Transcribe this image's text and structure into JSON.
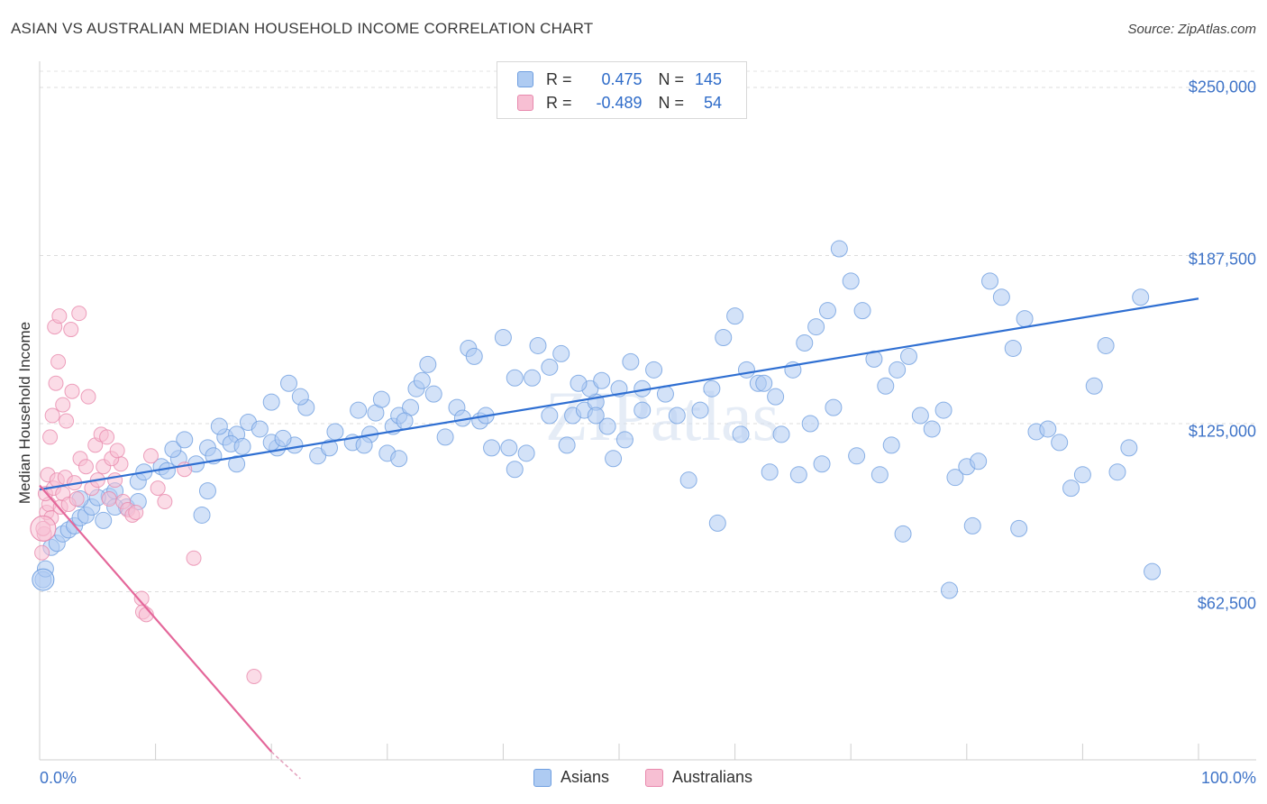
{
  "chart_data": {
    "type": "scatter",
    "title": "ASIAN VS AUSTRALIAN MEDIAN HOUSEHOLD INCOME CORRELATION CHART",
    "source": "Source: ZipAtlas.com",
    "watermark": "ZIPatlas",
    "xlabel": "",
    "ylabel": "Median Household Income",
    "xlim": [
      0,
      100
    ],
    "ylim": [
      0,
      250000
    ],
    "x_tick_labels": [
      "0.0%",
      "100.0%"
    ],
    "y_tick_labels": [
      {
        "value": 250000,
        "label": "$250,000"
      },
      {
        "value": 187500,
        "label": "$187,500"
      },
      {
        "value": 125000,
        "label": "$125,000"
      },
      {
        "value": 62500,
        "label": "$62,500"
      }
    ],
    "legend": {
      "rows": [
        {
          "r_label": "R =",
          "r_value": "0.475",
          "n_label": "N =",
          "n_value": "145"
        },
        {
          "r_label": "R =",
          "r_value": "-0.489",
          "n_label": "N =",
          "n_value": "54"
        }
      ]
    },
    "series": [
      {
        "name": "Asians",
        "color": "#6f9fe0",
        "fill": "#aecbf2",
        "trend": {
          "x": [
            0,
            100
          ],
          "y": [
            100500,
            171500
          ]
        },
        "points": [
          [
            0.3,
            67000
          ],
          [
            0.5,
            71000
          ],
          [
            1.0,
            79000
          ],
          [
            1.5,
            80500
          ],
          [
            2.0,
            84000
          ],
          [
            2.5,
            85500
          ],
          [
            3.0,
            87000
          ],
          [
            3.5,
            90000
          ],
          [
            4.0,
            91000
          ],
          [
            4.5,
            94000
          ],
          [
            6.0,
            98000
          ],
          [
            7.5,
            94000
          ],
          [
            8.5,
            96000
          ],
          [
            3.5,
            97000
          ],
          [
            5.5,
            89000
          ],
          [
            6.5,
            94000
          ],
          [
            5.0,
            97500
          ],
          [
            6.5,
            100000
          ],
          [
            8.5,
            103500
          ],
          [
            9.0,
            107000
          ],
          [
            10.5,
            109000
          ],
          [
            11.0,
            107500
          ],
          [
            12.0,
            112000
          ],
          [
            13.5,
            110000
          ],
          [
            11.5,
            115500
          ],
          [
            12.5,
            119000
          ],
          [
            14.5,
            116000
          ],
          [
            15.0,
            113000
          ],
          [
            16.0,
            120000
          ],
          [
            15.5,
            124000
          ],
          [
            17.0,
            121000
          ],
          [
            14.0,
            91000
          ],
          [
            14.5,
            100000
          ],
          [
            16.5,
            117500
          ],
          [
            17.5,
            116500
          ],
          [
            18.0,
            125500
          ],
          [
            17.0,
            110000
          ],
          [
            19.0,
            123000
          ],
          [
            20.5,
            116000
          ],
          [
            20.0,
            118000
          ],
          [
            22.0,
            117000
          ],
          [
            20.0,
            133000
          ],
          [
            23.0,
            131000
          ],
          [
            21.5,
            140000
          ],
          [
            22.5,
            135000
          ],
          [
            21.0,
            119500
          ],
          [
            24.0,
            113000
          ],
          [
            25.0,
            116000
          ],
          [
            25.5,
            122000
          ],
          [
            27.0,
            118000
          ],
          [
            28.5,
            121000
          ],
          [
            27.5,
            130000
          ],
          [
            29.0,
            129000
          ],
          [
            28.0,
            117000
          ],
          [
            30.0,
            114000
          ],
          [
            30.5,
            124000
          ],
          [
            31.0,
            128000
          ],
          [
            32.0,
            131000
          ],
          [
            32.5,
            138000
          ],
          [
            33.0,
            141000
          ],
          [
            31.5,
            126000
          ],
          [
            29.5,
            134000
          ],
          [
            31.0,
            112000
          ],
          [
            33.5,
            147000
          ],
          [
            34.0,
            136000
          ],
          [
            35.0,
            120000
          ],
          [
            36.0,
            131000
          ],
          [
            36.5,
            127000
          ],
          [
            37.0,
            153000
          ],
          [
            37.5,
            150000
          ],
          [
            38.0,
            126000
          ],
          [
            38.5,
            128000
          ],
          [
            40.0,
            157000
          ],
          [
            40.5,
            116000
          ],
          [
            41.0,
            108000
          ],
          [
            39.0,
            116000
          ],
          [
            42.0,
            114000
          ],
          [
            41.0,
            142000
          ],
          [
            42.5,
            142000
          ],
          [
            43.0,
            154000
          ],
          [
            44.0,
            146000
          ],
          [
            45.0,
            151000
          ],
          [
            46.0,
            128000
          ],
          [
            47.0,
            130000
          ],
          [
            48.0,
            133000
          ],
          [
            49.0,
            124000
          ],
          [
            49.5,
            112000
          ],
          [
            47.5,
            138000
          ],
          [
            46.5,
            140000
          ],
          [
            50.0,
            138000
          ],
          [
            51.0,
            148000
          ],
          [
            52.0,
            138000
          ],
          [
            53.0,
            145000
          ],
          [
            44.0,
            128000
          ],
          [
            45.5,
            117000
          ],
          [
            48.0,
            128000
          ],
          [
            48.5,
            141000
          ],
          [
            50.5,
            119000
          ],
          [
            52.0,
            130000
          ],
          [
            54.0,
            136000
          ],
          [
            55.0,
            128000
          ],
          [
            56.0,
            104000
          ],
          [
            57.0,
            130000
          ],
          [
            58.0,
            138000
          ],
          [
            59.0,
            157000
          ],
          [
            60.0,
            165000
          ],
          [
            61.0,
            145000
          ],
          [
            62.0,
            140000
          ],
          [
            58.5,
            88000
          ],
          [
            60.5,
            121000
          ],
          [
            63.0,
            107000
          ],
          [
            64.0,
            121000
          ],
          [
            65.0,
            145000
          ],
          [
            66.0,
            155000
          ],
          [
            67.0,
            161000
          ],
          [
            68.0,
            167000
          ],
          [
            69.0,
            190000
          ],
          [
            70.0,
            178000
          ],
          [
            71.0,
            167000
          ],
          [
            72.0,
            149000
          ],
          [
            73.0,
            139000
          ],
          [
            74.0,
            145000
          ],
          [
            75.0,
            150000
          ],
          [
            62.5,
            140000
          ],
          [
            63.5,
            135000
          ],
          [
            65.5,
            106000
          ],
          [
            66.5,
            125000
          ],
          [
            67.5,
            110000
          ],
          [
            68.5,
            131000
          ],
          [
            70.5,
            113000
          ],
          [
            72.5,
            106000
          ],
          [
            73.5,
            117000
          ],
          [
            74.5,
            84000
          ],
          [
            76.0,
            128000
          ],
          [
            77.0,
            123000
          ],
          [
            78.0,
            130000
          ],
          [
            79.0,
            105000
          ],
          [
            80.0,
            109000
          ],
          [
            81.0,
            111000
          ],
          [
            82.0,
            178000
          ],
          [
            83.0,
            172000
          ],
          [
            84.0,
            153000
          ],
          [
            85.0,
            164000
          ],
          [
            86.0,
            122000
          ],
          [
            87.0,
            123000
          ],
          [
            88.0,
            118000
          ],
          [
            89.0,
            101000
          ],
          [
            90.0,
            106000
          ],
          [
            91.0,
            139000
          ],
          [
            92.0,
            154000
          ],
          [
            93.0,
            107000
          ],
          [
            94.0,
            116000
          ],
          [
            95.0,
            172000
          ],
          [
            78.5,
            63000
          ],
          [
            80.5,
            87000
          ],
          [
            84.5,
            86000
          ],
          [
            96.0,
            70000
          ]
        ]
      },
      {
        "name": "Australians",
        "color": "#e889ad",
        "fill": "#f7bfd3",
        "trend": {
          "x": [
            0,
            20
          ],
          "y": [
            102000,
            3000
          ]
        },
        "trend_dashed": {
          "x": [
            20,
            22.5
          ],
          "y": [
            3000,
            -7000
          ]
        },
        "points": [
          [
            0.2,
            77000
          ],
          [
            0.4,
            84000
          ],
          [
            0.6,
            92000
          ],
          [
            0.8,
            95000
          ],
          [
            0.5,
            99000
          ],
          [
            1.0,
            90000
          ],
          [
            1.2,
            101000
          ],
          [
            0.7,
            106000
          ],
          [
            1.5,
            104000
          ],
          [
            1.8,
            94000
          ],
          [
            2.0,
            99000
          ],
          [
            2.2,
            105000
          ],
          [
            2.5,
            95000
          ],
          [
            3.0,
            103000
          ],
          [
            3.2,
            97000
          ],
          [
            0.9,
            120000
          ],
          [
            1.1,
            128000
          ],
          [
            1.4,
            140000
          ],
          [
            1.6,
            148000
          ],
          [
            2.0,
            132000
          ],
          [
            2.3,
            126000
          ],
          [
            2.8,
            137000
          ],
          [
            3.5,
            112000
          ],
          [
            4.0,
            109000
          ],
          [
            4.5,
            101000
          ],
          [
            5.0,
            104000
          ],
          [
            5.5,
            109000
          ],
          [
            6.0,
            97000
          ],
          [
            6.5,
            104000
          ],
          [
            7.0,
            110000
          ],
          [
            1.3,
            161000
          ],
          [
            1.7,
            165000
          ],
          [
            2.7,
            160000
          ],
          [
            3.4,
            166000
          ],
          [
            4.2,
            135000
          ],
          [
            4.8,
            117000
          ],
          [
            5.3,
            121000
          ],
          [
            5.8,
            120000
          ],
          [
            6.2,
            112000
          ],
          [
            6.7,
            115000
          ],
          [
            7.2,
            96000
          ],
          [
            7.6,
            93000
          ],
          [
            8.0,
            91000
          ],
          [
            8.3,
            92000
          ],
          [
            8.8,
            60000
          ],
          [
            8.9,
            55000
          ],
          [
            9.2,
            54000
          ],
          [
            9.6,
            113000
          ],
          [
            10.2,
            101000
          ],
          [
            10.8,
            96000
          ],
          [
            12.5,
            108000
          ],
          [
            13.3,
            75000
          ],
          [
            18.5,
            31000
          ],
          [
            0.3,
            86000
          ]
        ]
      }
    ]
  },
  "bottom_legend": [
    "Asians",
    "Australians"
  ]
}
